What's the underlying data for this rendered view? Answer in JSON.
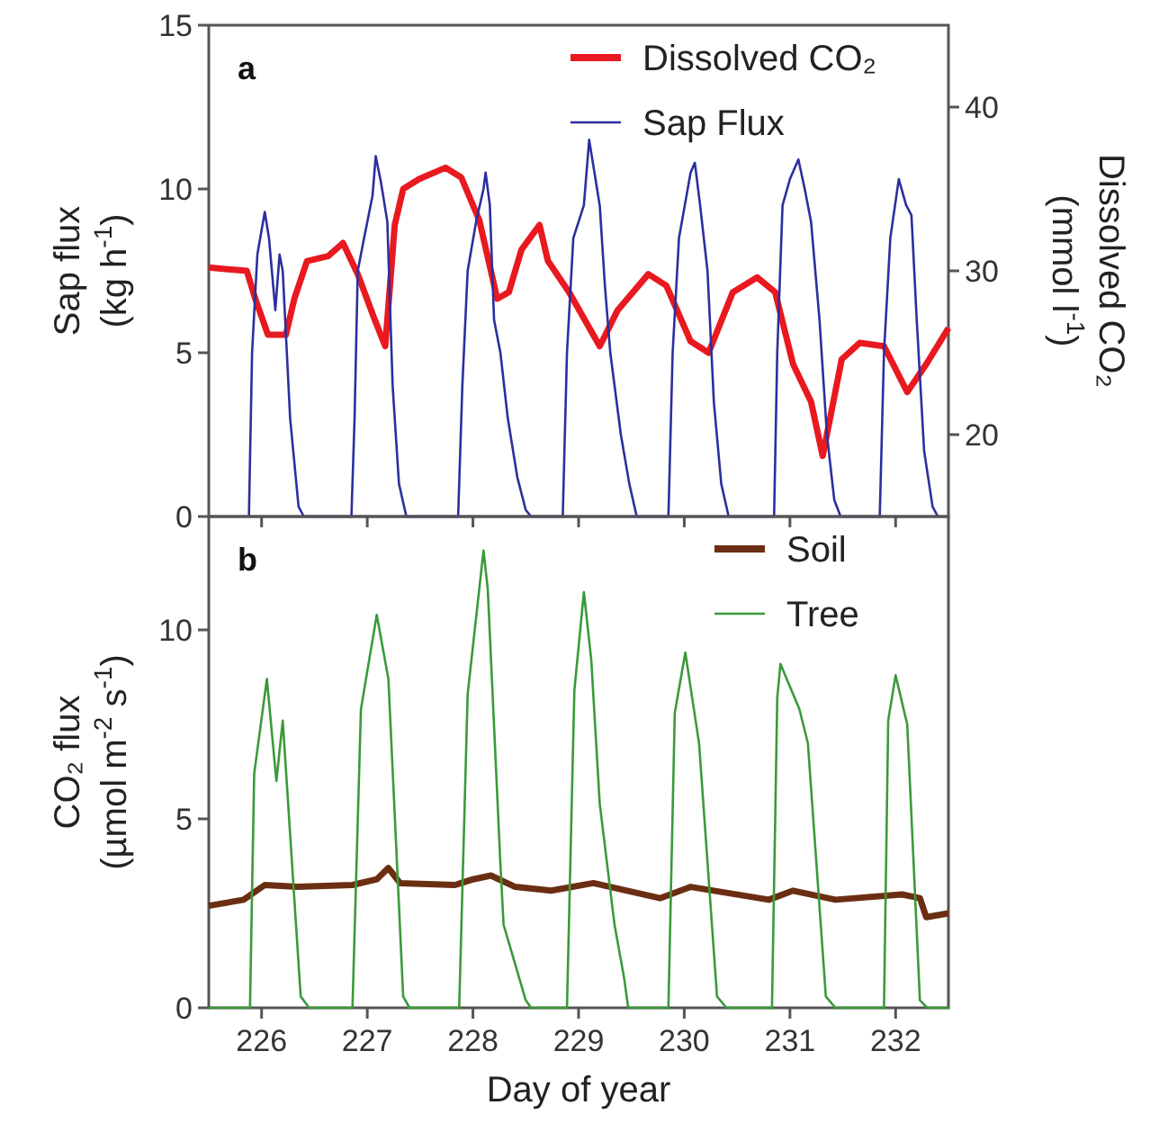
{
  "chart_data": [
    {
      "type": "line",
      "ylabel": "Sap flux (kg h$^{-1}$)",
      "y2label": "Dissolved CO₂ (mmol l$^{-1}$)",
      "annotations": [
        "a"
      ],
      "xlim": [
        225.5,
        232.5
      ],
      "xticks": [
        226,
        227,
        228,
        229,
        230,
        231,
        232
      ],
      "ylim": [
        0,
        15
      ],
      "yticks": [
        0,
        5,
        10,
        15
      ],
      "y2lim": [
        15,
        45
      ],
      "y2ticks": [
        20,
        30,
        40
      ],
      "tick_labels": "y",
      "grid": false,
      "legend": "top right",
      "line_style": "solid",
      "series": [
        {
          "name": "Dissolved CO₂",
          "color": "#e8191f",
          "axis": "y2",
          "x": [
            225.5,
            225.86,
            225.94,
            226.06,
            226.23,
            226.31,
            226.43,
            226.63,
            226.77,
            226.91,
            227.06,
            227.17,
            227.26,
            227.34,
            227.49,
            227.74,
            227.89,
            228.06,
            228.23,
            228.34,
            228.46,
            228.63,
            228.71,
            228.91,
            229.2,
            229.37,
            229.66,
            229.83,
            230.06,
            230.23,
            230.46,
            230.69,
            230.86,
            231.03,
            231.2,
            231.31,
            231.49,
            231.66,
            231.89,
            232.11,
            232.29,
            232.5
          ],
          "values": [
            30.2,
            30.0,
            28.3,
            26.1,
            26.1,
            28.3,
            30.6,
            30.9,
            31.7,
            29.8,
            27.2,
            25.4,
            32.8,
            35.0,
            35.6,
            36.3,
            35.7,
            33.1,
            28.3,
            28.7,
            31.3,
            32.8,
            30.6,
            28.7,
            25.4,
            27.6,
            29.8,
            29.1,
            25.7,
            25.0,
            28.7,
            29.6,
            28.7,
            24.3,
            22.0,
            18.7,
            24.6,
            25.6,
            25.4,
            22.6,
            24.3,
            26.5
          ]
        },
        {
          "name": "Sap Flux",
          "color": "#2b2f9e",
          "x": [
            225.88,
            225.91,
            225.96,
            226.03,
            226.07,
            226.13,
            226.17,
            226.2,
            226.27,
            226.35,
            226.4,
            226.85,
            226.88,
            226.91,
            226.97,
            227.05,
            227.08,
            227.13,
            227.19,
            227.24,
            227.3,
            227.37,
            227.86,
            227.9,
            227.95,
            228.03,
            228.1,
            228.12,
            228.16,
            228.2,
            228.26,
            228.33,
            228.42,
            228.5,
            228.55,
            228.85,
            228.89,
            228.95,
            229.05,
            229.1,
            229.15,
            229.2,
            229.25,
            229.3,
            229.4,
            229.48,
            229.55,
            229.85,
            229.89,
            229.95,
            230.06,
            230.1,
            230.15,
            230.22,
            230.28,
            230.35,
            230.42,
            230.85,
            230.88,
            230.93,
            231.0,
            231.08,
            231.14,
            231.2,
            231.28,
            231.35,
            231.42,
            231.48,
            231.85,
            231.89,
            231.95,
            232.03,
            232.1,
            232.15,
            232.2,
            232.27,
            232.35,
            232.4
          ],
          "values": [
            0,
            5,
            8,
            9.3,
            8.5,
            6.3,
            8,
            7.5,
            3,
            0.3,
            0,
            0,
            3,
            7.5,
            8.5,
            9.8,
            11,
            10.2,
            9,
            4,
            1,
            0,
            0,
            4,
            7.5,
            9,
            10,
            10.5,
            9.5,
            6,
            5,
            3,
            1.2,
            0.2,
            0,
            0,
            5,
            8.5,
            9.5,
            11.5,
            10.5,
            9.5,
            7,
            5,
            2.5,
            1,
            0,
            0,
            5,
            8.5,
            10.5,
            10.8,
            9.5,
            7.5,
            3.5,
            1,
            0,
            0,
            5,
            9.5,
            10.3,
            10.9,
            10,
            9,
            6,
            2.5,
            0.5,
            0,
            0,
            5,
            8.5,
            10.3,
            9.5,
            9.2,
            6,
            2,
            0.3,
            0
          ]
        }
      ]
    },
    {
      "type": "line",
      "xlabel": "Day of year",
      "ylabel": "CO₂ flux (µmol m$^{-2}$ s$^{-1}$)",
      "annotations": [
        "b"
      ],
      "xlim": [
        225.5,
        232.5
      ],
      "xticks": [
        226,
        227,
        228,
        229,
        230,
        231,
        232
      ],
      "ylim": [
        0,
        13
      ],
      "yticks": [
        0,
        5,
        10
      ],
      "grid": false,
      "legend": "top right",
      "line_style": "solid",
      "series": [
        {
          "name": "Soil",
          "color": "#6b2e12",
          "x": [
            225.5,
            225.83,
            226.03,
            226.34,
            226.86,
            227.09,
            227.2,
            227.31,
            227.83,
            228.0,
            228.17,
            228.4,
            228.74,
            229.14,
            229.77,
            230.06,
            230.8,
            231.03,
            231.43,
            232.06,
            232.23,
            232.29,
            232.5
          ],
          "values": [
            2.7,
            2.86,
            3.25,
            3.2,
            3.25,
            3.4,
            3.7,
            3.3,
            3.25,
            3.4,
            3.5,
            3.2,
            3.1,
            3.3,
            2.9,
            3.2,
            2.86,
            3.1,
            2.86,
            3.0,
            2.9,
            2.4,
            2.5
          ]
        },
        {
          "name": "Tree",
          "color": "#3a9a3a",
          "x": [
            225.5,
            225.89,
            225.93,
            226.05,
            226.14,
            226.2,
            226.37,
            226.45,
            226.86,
            226.94,
            227.09,
            227.2,
            227.34,
            227.4,
            227.87,
            227.95,
            228.1,
            228.14,
            228.26,
            228.29,
            228.5,
            228.55,
            228.89,
            228.96,
            229.05,
            229.12,
            229.2,
            229.34,
            229.43,
            229.47,
            229.85,
            229.91,
            230.01,
            230.14,
            230.31,
            230.4,
            230.83,
            230.88,
            230.91,
            231.09,
            231.17,
            231.34,
            231.43,
            231.89,
            231.93,
            232.0,
            232.11,
            232.23,
            232.3,
            232.5
          ],
          "values": [
            0,
            0,
            6.2,
            8.7,
            6.0,
            7.6,
            0.3,
            0,
            0,
            7.9,
            10.4,
            8.7,
            0.3,
            0,
            0,
            8.3,
            12.1,
            11.1,
            3.8,
            2.2,
            0.2,
            0,
            0,
            8.4,
            11.0,
            9.2,
            5.4,
            2.2,
            0.8,
            0,
            0,
            7.8,
            9.4,
            7.0,
            0.3,
            0,
            0,
            8.2,
            9.1,
            7.9,
            7.0,
            0.3,
            0,
            0,
            7.6,
            8.8,
            7.5,
            0.2,
            0,
            0
          ]
        }
      ]
    }
  ]
}
